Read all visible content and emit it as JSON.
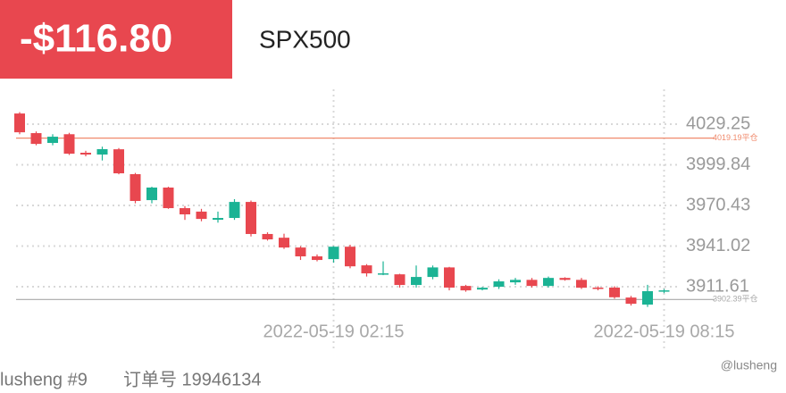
{
  "header": {
    "pnl": "-$116.80",
    "symbol": "SPX500"
  },
  "footer": {
    "account": "lusheng #9",
    "order": "订单号 19946134",
    "watermark": "@lusheng"
  },
  "chart_data": {
    "type": "candlestick",
    "categories": [
      null,
      null,
      null,
      null,
      null,
      null,
      null,
      null,
      null,
      null,
      null,
      null,
      null,
      null,
      null,
      null,
      null,
      null,
      null,
      "2022-05-19 02:15",
      null,
      null,
      null,
      null,
      null,
      null,
      null,
      null,
      null,
      null,
      null,
      null,
      null,
      null,
      null,
      null,
      null,
      null,
      null,
      "2022-05-19 08:15"
    ],
    "open": [
      4037,
      4022.8,
      4015.7,
      4022,
      4008.6,
      4007.3,
      4011.1,
      3993.1,
      3974.3,
      3983.4,
      3968.5,
      3966,
      3960.1,
      3961.4,
      3973,
      3949.8,
      3947.1,
      3940,
      3933.6,
      3931.6,
      3940.6,
      3927.1,
      3920.8,
      3920.6,
      3912.9,
      3918.7,
      3925.6,
      3912.2,
      3909.6,
      3911.6,
      3914.8,
      3916.6,
      3912.2,
      3918,
      3916.6,
      3911,
      3911,
      3903.8,
      3898.7,
      3908.4
    ],
    "high": [
      4038,
      4024,
      4022,
      4023,
      4010,
      4013,
      4012,
      3994,
      3984,
      3984,
      3970,
      3968,
      3966,
      3975,
      3974,
      3951,
      3950,
      3941,
      3935,
      3941,
      3942,
      3928,
      3930,
      3921,
      3927,
      3927,
      3926,
      3913,
      3911.5,
      3917,
      3918,
      3918,
      3919,
      3918.5,
      3918,
      3912,
      3912,
      3905,
      3913,
      3910
    ],
    "low": [
      4022,
      4014,
      4014,
      4007,
      4006,
      4003,
      3993,
      3972,
      3972,
      3968,
      3960,
      3959,
      3958,
      3960,
      3948,
      3945,
      3939,
      3931,
      3930,
      3929,
      3925,
      3919,
      3920,
      3911,
      3911,
      3917,
      3909,
      3908,
      3909,
      3910,
      3913,
      3911,
      3911,
      3916,
      3910,
      3909,
      3903,
      3898,
      3897,
      3907
    ],
    "close": [
      4023.4,
      4015,
      4020.2,
      4007.9,
      4007.3,
      4011.2,
      3993.7,
      3973.7,
      3983.4,
      3968.5,
      3964,
      3960.7,
      3961.4,
      3973,
      3949.8,
      3945.9,
      3940,
      3933.6,
      3931,
      3940.6,
      3926.4,
      3921.3,
      3921.3,
      3912.9,
      3918.7,
      3925.6,
      3911,
      3909,
      3910.9,
      3915.5,
      3916.6,
      3912.2,
      3918,
      3916.6,
      3910.9,
      3910,
      3904,
      3899.3,
      3908.4,
      3909
    ],
    "up_color": "#1bb394",
    "down_color": "#e8474f",
    "ylim": [
      3873.5,
      4054.5
    ],
    "yticks": [
      4029.25,
      3999.84,
      3970.43,
      3941.02,
      3911.61
    ],
    "grid": true,
    "reference_lines": [
      {
        "value": 4019.19,
        "label": "4019.19平仓",
        "color": "#f08a6c"
      },
      {
        "value": 3902.39,
        "label": "3902.39平仓",
        "color": "#a8a8a8"
      }
    ]
  }
}
